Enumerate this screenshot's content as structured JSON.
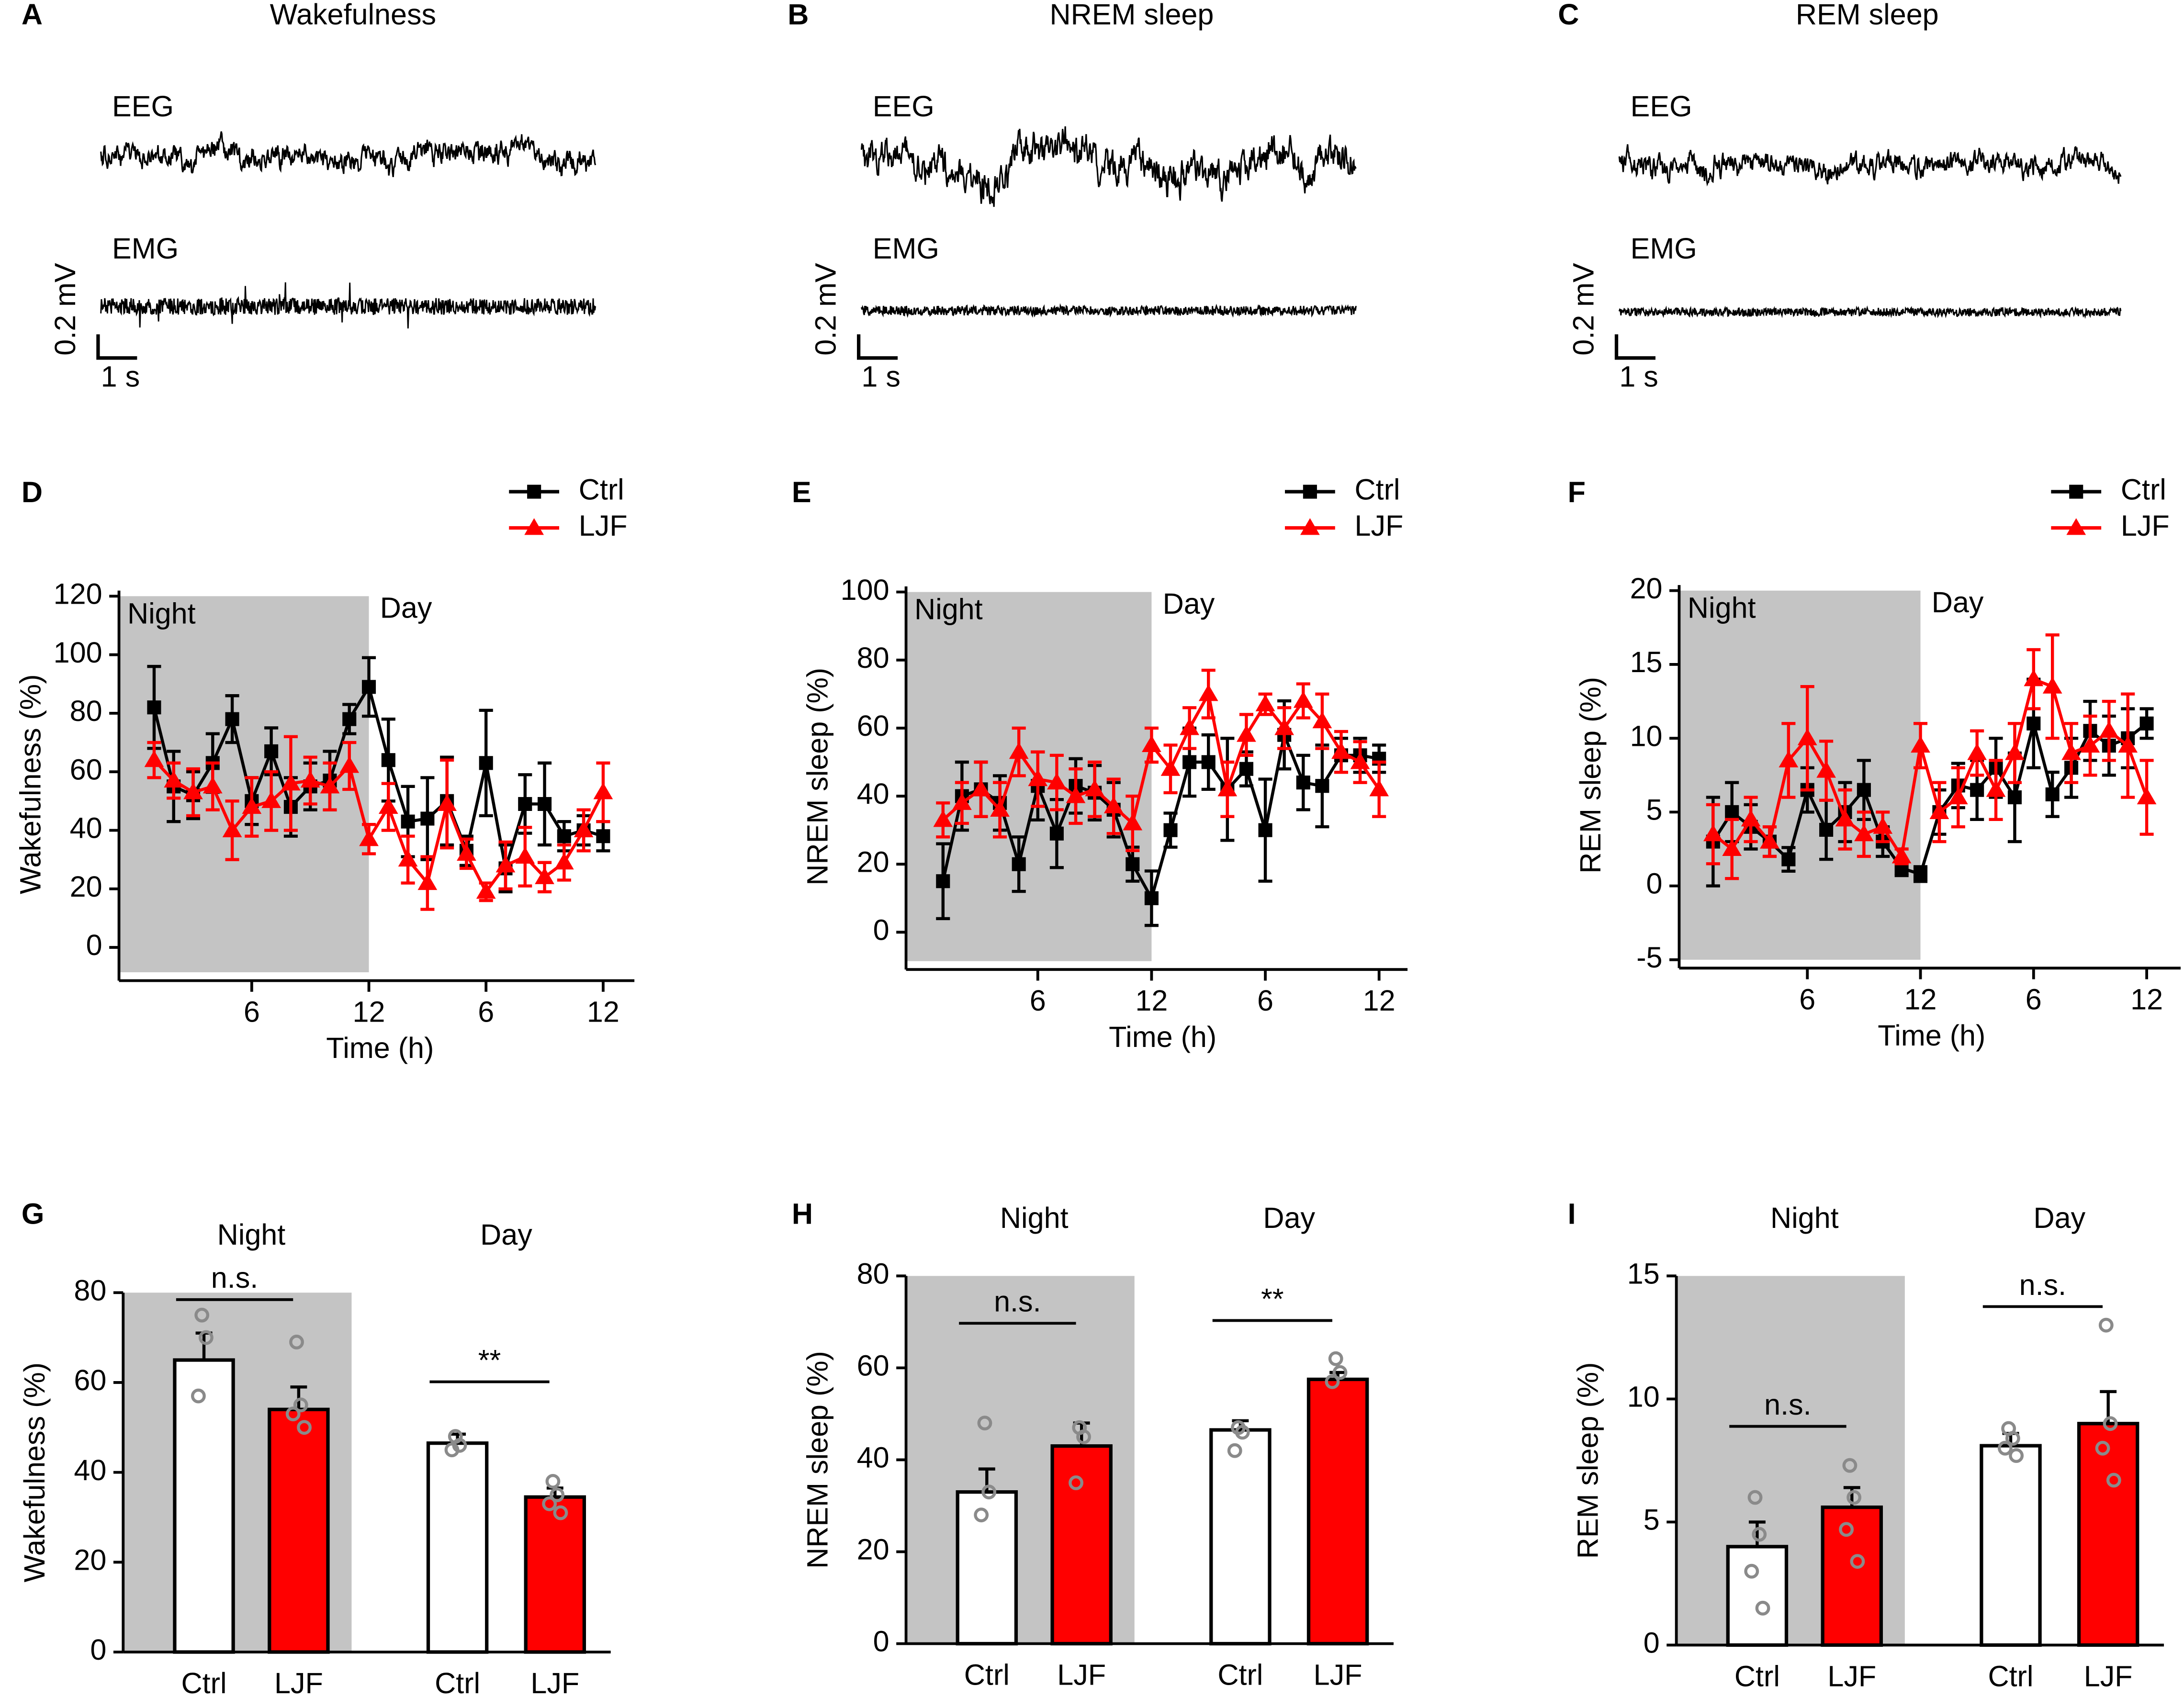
{
  "chart_data": [
    {
      "type": "trace",
      "panel": "A",
      "title": "Wakefulness",
      "channels": [
        "EEG",
        "EMG"
      ],
      "scale_y": "0.2 mV",
      "scale_x": "1 s"
    },
    {
      "type": "trace",
      "panel": "B",
      "title": "NREM sleep",
      "channels": [
        "EEG",
        "EMG"
      ],
      "scale_y": "0.2 mV",
      "scale_x": "1 s"
    },
    {
      "type": "trace",
      "panel": "C",
      "title": "REM sleep",
      "channels": [
        "EEG",
        "EMG"
      ],
      "scale_y": "0.2 mV",
      "scale_x": "1 s"
    },
    {
      "type": "line",
      "panel": "D",
      "xlabel": "Time (h)",
      "ylabel": "Wakefulness (%)",
      "annotations": [
        "Night",
        "Day"
      ],
      "night_until": 12,
      "x": [
        1,
        2,
        3,
        4,
        5,
        6,
        7,
        8,
        9,
        10,
        11,
        12,
        13,
        14,
        15,
        16,
        17,
        18,
        19,
        20,
        21,
        22,
        23,
        24
      ],
      "xlim": [
        -0.8,
        25.6
      ],
      "xticks": [
        6,
        12,
        {
          "value": 18,
          "label": "6"
        },
        {
          "value": 24,
          "label": "12"
        }
      ],
      "ylim": [
        -8.5,
        120
      ],
      "yticks": [
        0,
        20,
        40,
        60,
        80,
        100,
        120
      ],
      "series": [
        {
          "name": "Ctrl",
          "color": "#000000",
          "marker": "square",
          "values": [
            82,
            55,
            52,
            63,
            78,
            50,
            67,
            48,
            55,
            57,
            78,
            89,
            64,
            43,
            44,
            50,
            33,
            63,
            27,
            49,
            49,
            38,
            40,
            38
          ],
          "errors": [
            14,
            12,
            8,
            10,
            8,
            8,
            8,
            10,
            8,
            10,
            5,
            10,
            14,
            12,
            14,
            15,
            5,
            18,
            8,
            10,
            14,
            5,
            5,
            5
          ]
        },
        {
          "name": "LJF",
          "color": "#ff0000",
          "marker": "triangle",
          "values": [
            64,
            57,
            53,
            55,
            40,
            48,
            50,
            56,
            57,
            55,
            62,
            37,
            48,
            30,
            22,
            49,
            32,
            19,
            28,
            31,
            24,
            29,
            40,
            53
          ],
          "errors": [
            6,
            6,
            8,
            8,
            10,
            10,
            10,
            16,
            8,
            8,
            8,
            5,
            8,
            8,
            9,
            15,
            5,
            3,
            8,
            10,
            5,
            6,
            7,
            10
          ]
        }
      ]
    },
    {
      "type": "line",
      "panel": "E",
      "xlabel": "Time (h)",
      "ylabel": "NREM sleep (%)",
      "annotations": [
        "Night",
        "Day"
      ],
      "night_until": 12,
      "x": [
        1,
        2,
        3,
        4,
        5,
        6,
        7,
        8,
        9,
        10,
        11,
        12,
        13,
        14,
        15,
        16,
        17,
        18,
        19,
        20,
        21,
        22,
        23,
        24
      ],
      "xlim": [
        -0.95,
        25.5
      ],
      "xticks": [
        6,
        12,
        {
          "value": 18,
          "label": "6"
        },
        {
          "value": 24,
          "label": "12"
        }
      ],
      "ylim": [
        -8.5,
        100
      ],
      "yticks": [
        0,
        20,
        40,
        60,
        80,
        100
      ],
      "series": [
        {
          "name": "Ctrl",
          "color": "#000000",
          "marker": "square",
          "values": [
            15,
            40,
            42,
            38,
            20,
            43,
            29,
            43,
            41,
            36,
            20,
            10,
            30,
            50,
            50,
            42,
            48,
            30,
            58,
            44,
            43,
            52,
            52,
            51
          ],
          "errors": [
            11,
            10,
            8,
            8,
            8,
            10,
            10,
            8,
            8,
            8,
            5,
            8,
            5,
            10,
            8,
            15,
            5,
            15,
            10,
            8,
            12,
            5,
            5,
            4
          ]
        },
        {
          "name": "LJF",
          "color": "#ff0000",
          "marker": "triangle",
          "values": [
            33,
            38,
            42,
            36,
            53,
            45,
            44,
            40,
            42,
            37,
            32,
            55,
            48,
            60,
            70,
            42,
            58,
            67,
            60,
            68,
            62,
            53,
            50,
            42
          ],
          "errors": [
            5,
            6,
            8,
            8,
            7,
            8,
            8,
            8,
            8,
            8,
            8,
            5,
            7,
            6,
            7,
            8,
            6,
            3,
            6,
            5,
            8,
            6,
            6,
            8
          ]
        }
      ]
    },
    {
      "type": "line",
      "panel": "F",
      "xlabel": "Time (h)",
      "ylabel": "REM sleep (%)",
      "annotations": [
        "Night",
        "Day"
      ],
      "night_until": 12,
      "x": [
        1,
        2,
        3,
        4,
        5,
        6,
        7,
        8,
        9,
        10,
        11,
        12,
        13,
        14,
        15,
        16,
        17,
        18,
        19,
        20,
        21,
        22,
        23,
        24
      ],
      "xlim": [
        -0.8,
        25.8
      ],
      "xticks": [
        6,
        12,
        {
          "value": 18,
          "label": "6"
        },
        {
          "value": 24,
          "label": "12"
        }
      ],
      "ylim": [
        -5,
        20
      ],
      "yticks": [
        -5,
        0,
        5,
        10,
        15,
        20
      ],
      "series": [
        {
          "name": "Ctrl",
          "color": "#000000",
          "marker": "square",
          "values": [
            3,
            5,
            4,
            3,
            1.8,
            6.5,
            3.8,
            5,
            6.5,
            3,
            1.2,
            0.8,
            5,
            6.8,
            6.5,
            8,
            6,
            11,
            6.2,
            8,
            10.5,
            9.5,
            10,
            11
          ],
          "errors": [
            3,
            2,
            1.5,
            1,
            0.8,
            1.5,
            2,
            2,
            2,
            1,
            0.5,
            0.5,
            1.5,
            1.5,
            2,
            2,
            3,
            3,
            1.5,
            2,
            2,
            2,
            2,
            1
          ]
        },
        {
          "name": "LJF",
          "color": "#ff0000",
          "marker": "triangle",
          "values": [
            3.5,
            2.5,
            4.5,
            3,
            8.5,
            10,
            7.8,
            4.5,
            3.5,
            4,
            2,
            9.5,
            5,
            6,
            9,
            6.5,
            9,
            14,
            13.5,
            9,
            9.5,
            10.5,
            9.5,
            6
          ],
          "errors": [
            2,
            2,
            1.5,
            1,
            2.5,
            3.5,
            2,
            2,
            1.5,
            1,
            0.5,
            1.5,
            2,
            2,
            1.5,
            2,
            2,
            2,
            3.5,
            2,
            2,
            2,
            3.5,
            2.5
          ]
        }
      ]
    },
    {
      "type": "bar",
      "panel": "G",
      "ylabel": "Wakefulness (%)",
      "categories": [
        "Night",
        "Day"
      ],
      "ylim": [
        0,
        80
      ],
      "yticks": [
        0,
        20,
        40,
        60,
        80
      ],
      "annotations": [
        {
          "text": "n.s.",
          "category": 0
        },
        {
          "text": "**",
          "category": 1
        }
      ],
      "series": [
        {
          "name": "Ctrl",
          "color": "#ffffff",
          "values": [
            65,
            46.5
          ],
          "errors": [
            6,
            2
          ],
          "points": [
            [
              75,
              70,
              57
            ],
            [
              48,
              46,
              45
            ]
          ]
        },
        {
          "name": "LJF",
          "color": "#ff0000",
          "values": [
            54,
            34.5
          ],
          "errors": [
            5,
            2
          ],
          "points": [
            [
              69,
              55,
              53,
              50
            ],
            [
              38,
              35,
              33,
              31
            ]
          ]
        }
      ]
    },
    {
      "type": "bar",
      "panel": "H",
      "ylabel": "NREM sleep (%)",
      "categories": [
        "Night",
        "Day"
      ],
      "ylim": [
        0,
        80
      ],
      "yticks": [
        0,
        20,
        40,
        60,
        80
      ],
      "annotations": [
        {
          "text": "n.s.",
          "category": 0
        },
        {
          "text": "**",
          "category": 1
        }
      ],
      "series": [
        {
          "name": "Ctrl",
          "color": "#ffffff",
          "values": [
            33,
            46.5
          ],
          "errors": [
            5,
            2
          ],
          "points": [
            [
              48,
              33,
              28
            ],
            [
              47,
              46,
              42
            ]
          ]
        },
        {
          "name": "LJF",
          "color": "#ff0000",
          "values": [
            43,
            57.5
          ],
          "errors": [
            5,
            1.5
          ],
          "points": [
            [
              47,
              45,
              35
            ],
            [
              62,
              59,
              57
            ]
          ]
        }
      ]
    },
    {
      "type": "bar",
      "panel": "I",
      "ylabel": "REM sleep (%)",
      "categories": [
        "Night",
        "Day"
      ],
      "ylim": [
        0,
        15
      ],
      "yticks": [
        0,
        5,
        10,
        15
      ],
      "annotations": [
        {
          "text": "n.s.",
          "category": 0
        },
        {
          "text": "n.s.",
          "category": 1
        }
      ],
      "series": [
        {
          "name": "Ctrl",
          "color": "#ffffff",
          "values": [
            4,
            8.1
          ],
          "errors": [
            1,
            0.5
          ],
          "points": [
            [
              6,
              4.5,
              3,
              1.5
            ],
            [
              8.8,
              8.4,
              8,
              7.7
            ]
          ]
        },
        {
          "name": "LJF",
          "color": "#ff0000",
          "values": [
            5.6,
            9
          ],
          "errors": [
            0.8,
            1.3
          ],
          "points": [
            [
              7.3,
              6,
              4.7,
              3.4
            ],
            [
              13,
              9,
              8,
              6.7
            ]
          ]
        }
      ]
    }
  ]
}
